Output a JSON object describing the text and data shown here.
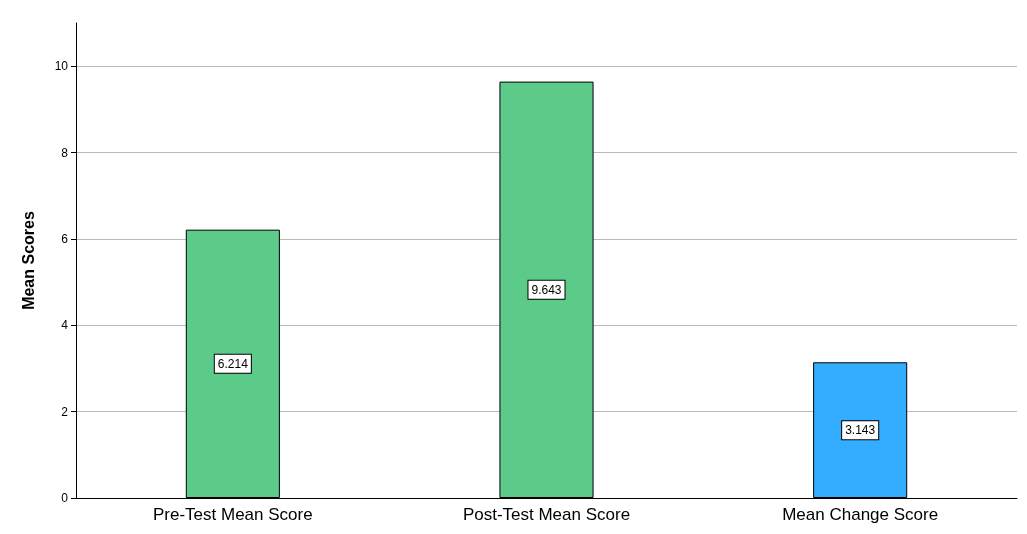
{
  "chart_data": {
    "type": "bar",
    "ylabel": "Mean Scores",
    "categories": [
      "Pre-Test Mean Score",
      "Post-Test Mean Score",
      "Mean Change Score"
    ],
    "values": [
      6.214,
      9.643,
      3.143
    ],
    "colors": [
      "#5ccb8a",
      "#5ccb8a",
      "#33adff"
    ],
    "ylim": [
      0,
      11
    ],
    "yticks": [
      0,
      2,
      4,
      6,
      8,
      10
    ],
    "grid": "y",
    "data_labels": true
  }
}
